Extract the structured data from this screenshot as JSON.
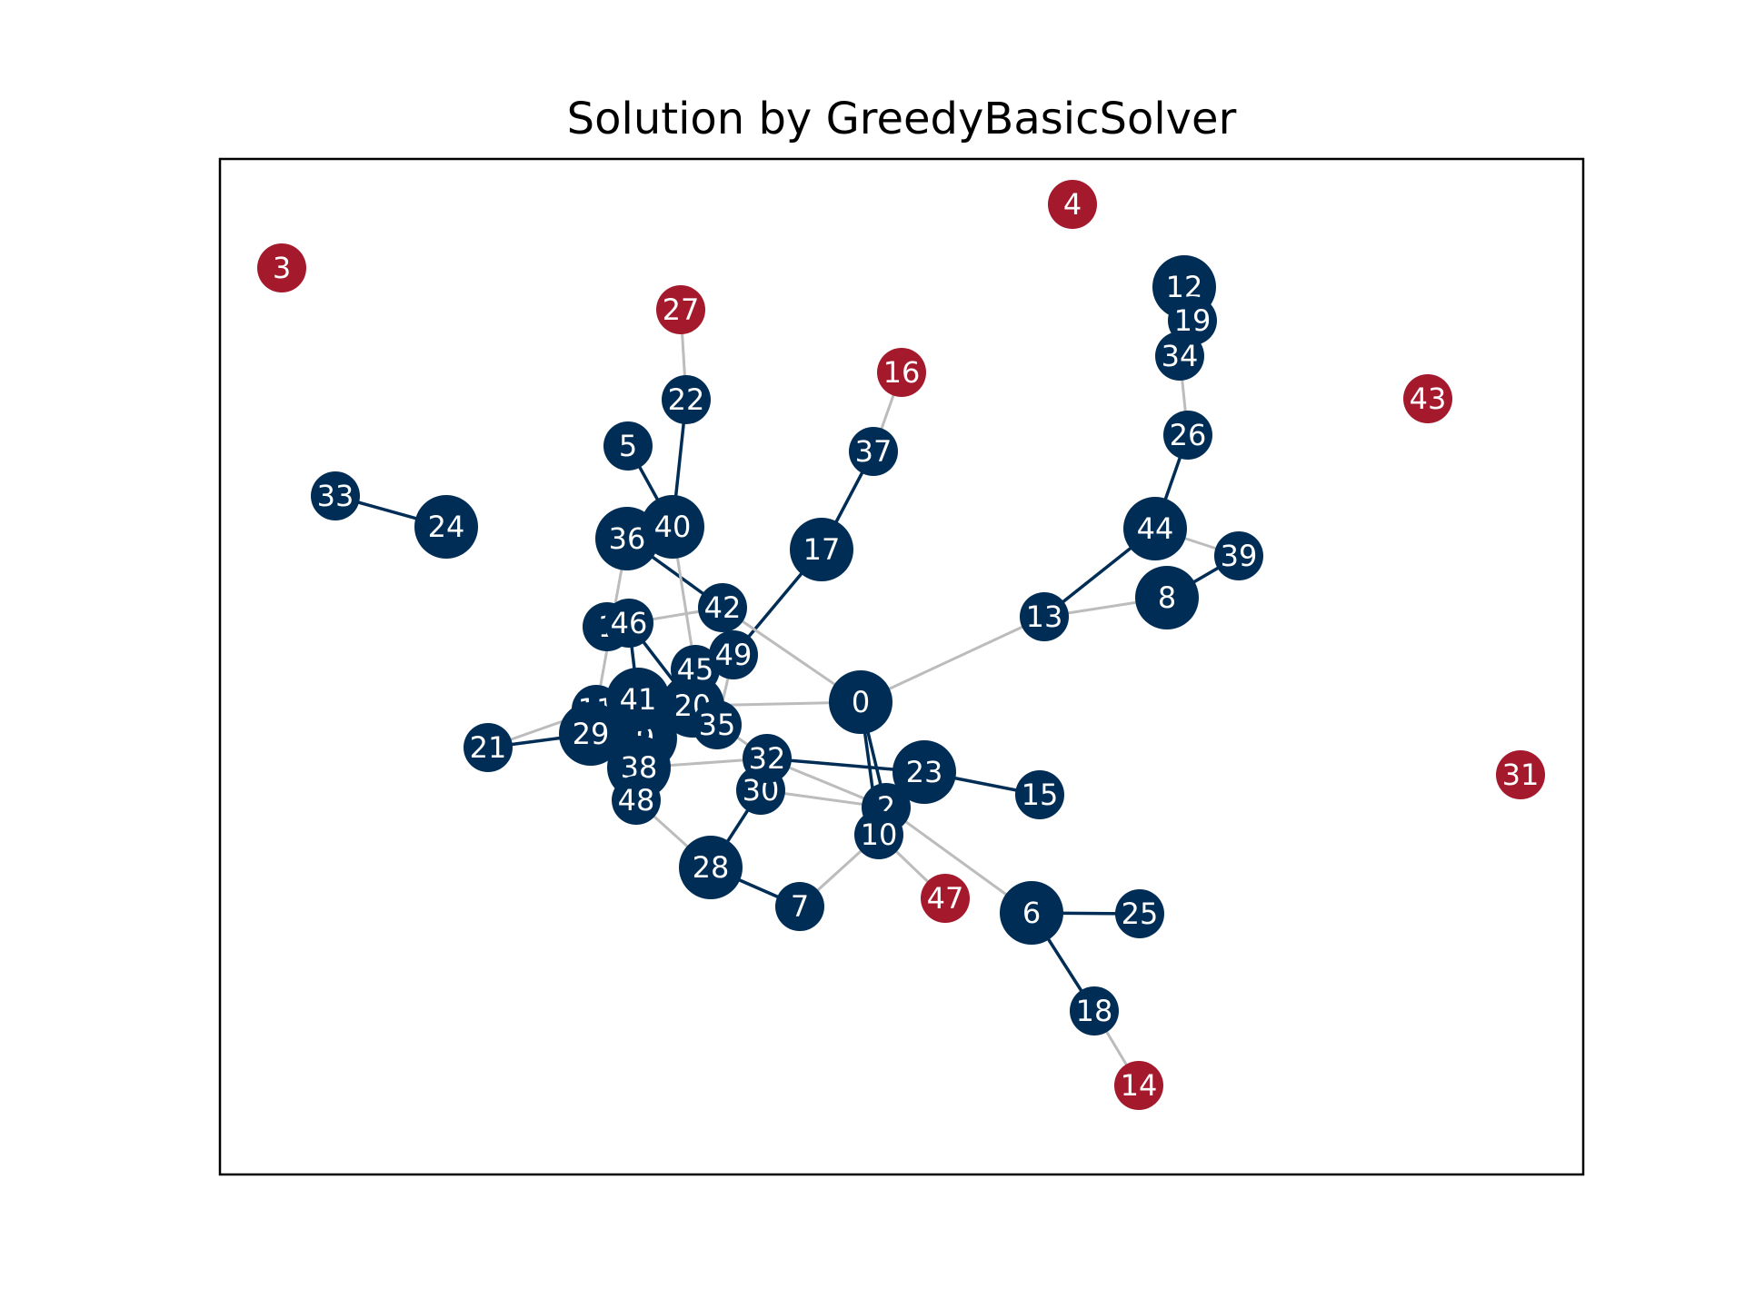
{
  "title": "Solution by GreedyBasicSolver",
  "colors": {
    "selected": "#002d55",
    "unselected": "#a5192d",
    "selected_edge": "#002d55",
    "other_edge": "#bcbcbc",
    "label": "#ffffff"
  },
  "nodes": [
    {
      "id": "0",
      "label": "0",
      "selected": true,
      "size": "large"
    },
    {
      "id": "1",
      "label": "1",
      "selected": true,
      "size": "medium"
    },
    {
      "id": "2",
      "label": "2",
      "selected": true,
      "size": "medium"
    },
    {
      "id": "3",
      "label": "3",
      "selected": false,
      "size": "small"
    },
    {
      "id": "4",
      "label": "4",
      "selected": false,
      "size": "small"
    },
    {
      "id": "5",
      "label": "5",
      "selected": true,
      "size": "medium"
    },
    {
      "id": "6",
      "label": "6",
      "selected": true,
      "size": "large"
    },
    {
      "id": "7",
      "label": "7",
      "selected": true,
      "size": "medium"
    },
    {
      "id": "8",
      "label": "8",
      "selected": true,
      "size": "large"
    },
    {
      "id": "9",
      "label": "9",
      "selected": true,
      "size": "large"
    },
    {
      "id": "10",
      "label": "10",
      "selected": true,
      "size": "medium"
    },
    {
      "id": "11",
      "label": "11",
      "selected": true,
      "size": "medium"
    },
    {
      "id": "12",
      "label": "12",
      "selected": true,
      "size": "large"
    },
    {
      "id": "13",
      "label": "13",
      "selected": true,
      "size": "medium"
    },
    {
      "id": "14",
      "label": "14",
      "selected": false,
      "size": "small"
    },
    {
      "id": "15",
      "label": "15",
      "selected": true,
      "size": "medium"
    },
    {
      "id": "16",
      "label": "16",
      "selected": false,
      "size": "small"
    },
    {
      "id": "17",
      "label": "17",
      "selected": true,
      "size": "large"
    },
    {
      "id": "18",
      "label": "18",
      "selected": true,
      "size": "medium"
    },
    {
      "id": "19",
      "label": "19",
      "selected": true,
      "size": "medium"
    },
    {
      "id": "20",
      "label": "20",
      "selected": true,
      "size": "large"
    },
    {
      "id": "21",
      "label": "21",
      "selected": true,
      "size": "medium"
    },
    {
      "id": "22",
      "label": "22",
      "selected": true,
      "size": "medium"
    },
    {
      "id": "23",
      "label": "23",
      "selected": true,
      "size": "large"
    },
    {
      "id": "24",
      "label": "24",
      "selected": true,
      "size": "large"
    },
    {
      "id": "25",
      "label": "25",
      "selected": true,
      "size": "medium"
    },
    {
      "id": "26",
      "label": "26",
      "selected": true,
      "size": "medium"
    },
    {
      "id": "27",
      "label": "27",
      "selected": false,
      "size": "small"
    },
    {
      "id": "28",
      "label": "28",
      "selected": true,
      "size": "large"
    },
    {
      "id": "29",
      "label": "29",
      "selected": true,
      "size": "large"
    },
    {
      "id": "30",
      "label": "30",
      "selected": true,
      "size": "medium"
    },
    {
      "id": "31",
      "label": "31",
      "selected": false,
      "size": "small"
    },
    {
      "id": "32",
      "label": "32",
      "selected": true,
      "size": "medium"
    },
    {
      "id": "33",
      "label": "33",
      "selected": true,
      "size": "medium"
    },
    {
      "id": "34",
      "label": "34",
      "selected": true,
      "size": "medium"
    },
    {
      "id": "35",
      "label": "35",
      "selected": true,
      "size": "medium"
    },
    {
      "id": "36",
      "label": "36",
      "selected": true,
      "size": "large"
    },
    {
      "id": "37",
      "label": "37",
      "selected": true,
      "size": "medium"
    },
    {
      "id": "38",
      "label": "38",
      "selected": true,
      "size": "large"
    },
    {
      "id": "39",
      "label": "39",
      "selected": true,
      "size": "medium"
    },
    {
      "id": "40",
      "label": "40",
      "selected": true,
      "size": "large"
    },
    {
      "id": "41",
      "label": "41",
      "selected": true,
      "size": "large"
    },
    {
      "id": "42",
      "label": "42",
      "selected": true,
      "size": "medium"
    },
    {
      "id": "43",
      "label": "43",
      "selected": false,
      "size": "small"
    },
    {
      "id": "44",
      "label": "44",
      "selected": true,
      "size": "large"
    },
    {
      "id": "45",
      "label": "45",
      "selected": true,
      "size": "medium"
    },
    {
      "id": "46",
      "label": "46",
      "selected": true,
      "size": "medium"
    },
    {
      "id": "47",
      "label": "47",
      "selected": false,
      "size": "small"
    },
    {
      "id": "48",
      "label": "48",
      "selected": true,
      "size": "medium"
    },
    {
      "id": "49",
      "label": "49",
      "selected": true,
      "size": "medium"
    }
  ],
  "edges": [
    {
      "from": "33",
      "to": "24",
      "selected": true
    },
    {
      "from": "5",
      "to": "40",
      "selected": true
    },
    {
      "from": "22",
      "to": "40",
      "selected": true
    },
    {
      "from": "27",
      "to": "22",
      "selected": false
    },
    {
      "from": "16",
      "to": "37",
      "selected": false
    },
    {
      "from": "37",
      "to": "17",
      "selected": true
    },
    {
      "from": "17",
      "to": "49",
      "selected": true
    },
    {
      "from": "36",
      "to": "42",
      "selected": true
    },
    {
      "from": "36",
      "to": "11",
      "selected": false
    },
    {
      "from": "40",
      "to": "45",
      "selected": false
    },
    {
      "from": "1",
      "to": "42",
      "selected": false
    },
    {
      "from": "42",
      "to": "0",
      "selected": false
    },
    {
      "from": "46",
      "to": "41",
      "selected": true
    },
    {
      "from": "46",
      "to": "20",
      "selected": true
    },
    {
      "from": "49",
      "to": "35",
      "selected": false
    },
    {
      "from": "20",
      "to": "0",
      "selected": false
    },
    {
      "from": "0",
      "to": "13",
      "selected": false
    },
    {
      "from": "0",
      "to": "2",
      "selected": true
    },
    {
      "from": "0",
      "to": "10",
      "selected": true
    },
    {
      "from": "13",
      "to": "44",
      "selected": true
    },
    {
      "from": "13",
      "to": "8",
      "selected": false
    },
    {
      "from": "44",
      "to": "26",
      "selected": true
    },
    {
      "from": "44",
      "to": "39",
      "selected": false
    },
    {
      "from": "8",
      "to": "39",
      "selected": true
    },
    {
      "from": "26",
      "to": "34",
      "selected": false
    },
    {
      "from": "34",
      "to": "19",
      "selected": false
    },
    {
      "from": "19",
      "to": "12",
      "selected": false
    },
    {
      "from": "21",
      "to": "11",
      "selected": false
    },
    {
      "from": "21",
      "to": "29",
      "selected": true
    },
    {
      "from": "29",
      "to": "41",
      "selected": true
    },
    {
      "from": "38",
      "to": "32",
      "selected": false
    },
    {
      "from": "32",
      "to": "23",
      "selected": true
    },
    {
      "from": "32",
      "to": "2",
      "selected": false
    },
    {
      "from": "20",
      "to": "32",
      "selected": false
    },
    {
      "from": "30",
      "to": "2",
      "selected": false
    },
    {
      "from": "30",
      "to": "28",
      "selected": true
    },
    {
      "from": "48",
      "to": "28",
      "selected": false
    },
    {
      "from": "28",
      "to": "7",
      "selected": true
    },
    {
      "from": "7",
      "to": "10",
      "selected": false
    },
    {
      "from": "10",
      "to": "47",
      "selected": false
    },
    {
      "from": "2",
      "to": "6",
      "selected": false
    },
    {
      "from": "23",
      "to": "15",
      "selected": true
    },
    {
      "from": "6",
      "to": "25",
      "selected": true
    },
    {
      "from": "6",
      "to": "18",
      "selected": true
    },
    {
      "from": "18",
      "to": "14",
      "selected": false
    },
    {
      "from": "41",
      "to": "35",
      "selected": true
    },
    {
      "from": "9",
      "to": "38",
      "selected": true
    }
  ]
}
